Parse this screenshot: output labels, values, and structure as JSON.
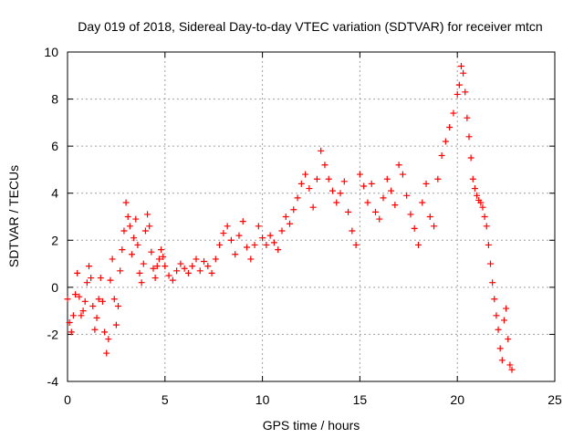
{
  "chart_data": {
    "type": "scatter",
    "title": "Day 019 of 2018, Sidereal Day-to-day VTEC variation (SDTVAR) for receiver mtcn",
    "xlabel": "GPS time / hours",
    "ylabel": "SDTVAR / TECUs",
    "xlim": [
      0,
      25
    ],
    "ylim": [
      -4,
      10
    ],
    "xticks": [
      0,
      5,
      10,
      15,
      20,
      25
    ],
    "yticks": [
      -4,
      -2,
      0,
      2,
      4,
      6,
      8,
      10
    ],
    "grid": true,
    "marker": "+",
    "colors": {
      "series": "#ff0000",
      "grid": "#a0a0a0",
      "axis": "#000000"
    },
    "series": [
      {
        "name": "SDTVAR",
        "x": [
          0.0,
          0.1,
          0.2,
          0.3,
          0.4,
          0.5,
          0.6,
          0.7,
          0.8,
          0.9,
          1.0,
          1.1,
          1.2,
          1.3,
          1.4,
          1.5,
          1.6,
          1.7,
          1.8,
          1.9,
          2.0,
          2.1,
          2.2,
          2.3,
          2.4,
          2.5,
          2.6,
          2.7,
          2.8,
          2.9,
          3.0,
          3.1,
          3.2,
          3.3,
          3.4,
          3.5,
          3.6,
          3.7,
          3.8,
          3.9,
          4.0,
          4.1,
          4.2,
          4.3,
          4.4,
          4.5,
          4.6,
          4.7,
          4.8,
          4.9,
          5.0,
          5.2,
          5.4,
          5.6,
          5.8,
          6.0,
          6.2,
          6.4,
          6.6,
          6.8,
          7.0,
          7.2,
          7.4,
          7.6,
          7.8,
          8.0,
          8.2,
          8.4,
          8.6,
          8.8,
          9.0,
          9.2,
          9.4,
          9.6,
          9.8,
          10.0,
          10.2,
          10.4,
          10.6,
          10.8,
          11.0,
          11.2,
          11.4,
          11.6,
          11.8,
          12.0,
          12.2,
          12.4,
          12.6,
          12.8,
          13.0,
          13.2,
          13.4,
          13.6,
          13.8,
          14.0,
          14.2,
          14.4,
          14.6,
          14.8,
          15.0,
          15.2,
          15.4,
          15.6,
          15.8,
          16.0,
          16.2,
          16.4,
          16.6,
          16.8,
          17.0,
          17.2,
          17.4,
          17.6,
          17.8,
          18.0,
          18.2,
          18.4,
          18.6,
          18.8,
          19.0,
          19.2,
          19.4,
          19.6,
          19.8,
          20.0,
          20.1,
          20.2,
          20.3,
          20.4,
          20.5,
          20.6,
          20.7,
          20.8,
          20.9,
          21.0,
          21.1,
          21.2,
          21.3,
          21.4,
          21.5,
          21.6,
          21.7,
          21.8,
          21.9,
          22.0,
          22.1,
          22.2,
          22.3,
          22.4,
          22.5,
          22.6,
          22.7,
          22.8
        ],
        "y": [
          -0.5,
          -1.5,
          -1.9,
          -1.2,
          -0.3,
          0.6,
          -0.4,
          -1.2,
          -1.0,
          -0.6,
          0.2,
          0.9,
          0.4,
          -0.8,
          -1.8,
          -1.3,
          -0.5,
          0.4,
          -0.6,
          -1.9,
          -2.8,
          -2.2,
          0.3,
          1.2,
          -0.5,
          -1.6,
          -0.8,
          0.7,
          1.6,
          2.4,
          3.6,
          3.0,
          2.6,
          1.4,
          2.1,
          2.9,
          1.8,
          0.6,
          0.2,
          1.0,
          2.4,
          3.1,
          2.6,
          1.5,
          0.8,
          0.4,
          0.9,
          1.2,
          1.6,
          1.3,
          0.9,
          0.5,
          0.3,
          0.7,
          1.0,
          0.8,
          0.6,
          0.9,
          1.2,
          0.7,
          1.1,
          0.9,
          0.6,
          1.2,
          1.8,
          2.3,
          2.6,
          2.0,
          1.4,
          2.2,
          2.8,
          1.7,
          1.2,
          1.8,
          2.6,
          2.1,
          1.8,
          2.2,
          1.9,
          1.6,
          2.4,
          3.0,
          2.7,
          3.3,
          3.8,
          4.4,
          4.8,
          4.2,
          3.4,
          4.6,
          5.8,
          5.2,
          4.6,
          4.1,
          3.6,
          4.0,
          4.5,
          3.2,
          2.4,
          1.8,
          4.8,
          4.3,
          3.6,
          4.4,
          3.2,
          2.9,
          3.8,
          4.6,
          4.1,
          3.5,
          5.2,
          4.8,
          3.9,
          3.1,
          2.5,
          1.8,
          3.6,
          4.4,
          3.0,
          2.6,
          4.6,
          5.6,
          6.2,
          6.8,
          7.4,
          8.2,
          8.6,
          9.4,
          9.1,
          8.3,
          7.2,
          6.4,
          5.5,
          4.6,
          4.2,
          3.9,
          3.7,
          3.6,
          3.4,
          3.0,
          2.6,
          1.8,
          1.0,
          0.2,
          -0.5,
          -1.2,
          -1.8,
          -2.6,
          -3.1,
          -1.4,
          -0.9,
          -2.2,
          -3.3,
          -3.5
        ]
      }
    ]
  }
}
